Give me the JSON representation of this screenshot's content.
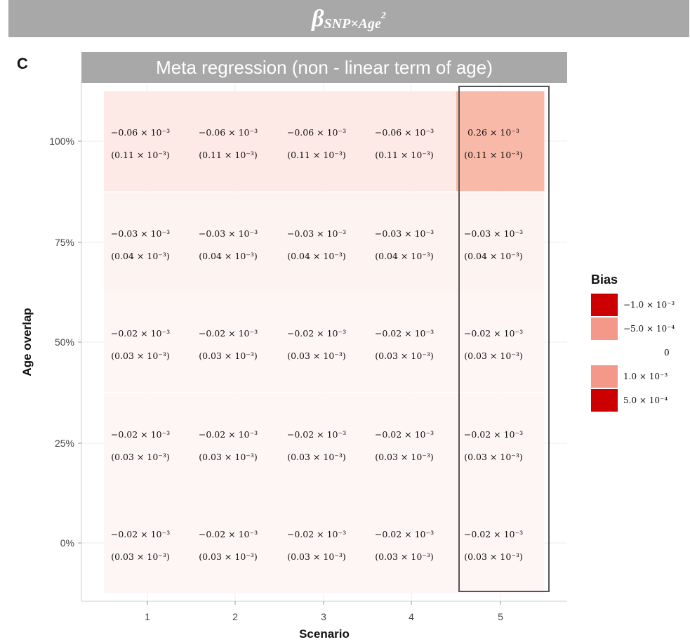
{
  "banner": {
    "beta": "β",
    "subscript": "SNP×Age",
    "superscript": "2"
  },
  "panel_letter": "C",
  "panel_title": "Meta regression (non - linear term of age)",
  "legend": {
    "title": "Bias",
    "items": [
      {
        "label": "−1.0 × 10⁻³",
        "color": "#cc0000"
      },
      {
        "label": "−5.0 × 10⁻⁴",
        "color": "#f4998a"
      },
      {
        "label": "0",
        "color": "#ffffff"
      },
      {
        "label": "1.0 × 10⁻³",
        "color": "#f4998a"
      },
      {
        "label": "5.0 × 10⁻⁴",
        "color": "#cc0000"
      }
    ]
  },
  "chart_data": {
    "type": "heatmap",
    "title": "Meta regression (non - linear term of age)",
    "xlabel": "Scenario",
    "ylabel": "Age overlap",
    "x_categories": [
      "1",
      "2",
      "3",
      "4",
      "5"
    ],
    "y_categories": [
      "100%",
      "75%",
      "50%",
      "25%",
      "0%"
    ],
    "highlight_column": "5",
    "cells": [
      {
        "row": "100%",
        "values": [
          "−0.06 × 10⁻³",
          "−0.06 × 10⁻³",
          "−0.06 × 10⁻³",
          "−0.06 × 10⁻³",
          "0.26 × 10⁻³"
        ],
        "se": [
          "(0.11 × 10⁻³)",
          "(0.11 × 10⁻³)",
          "(0.11 × 10⁻³)",
          "(0.11 × 10⁻³)",
          "(0.11 × 10⁻³)"
        ],
        "fills": [
          "#fde9e6",
          "#fde9e6",
          "#fde9e6",
          "#fde9e6",
          "#f9b9a8"
        ]
      },
      {
        "row": "75%",
        "values": [
          "−0.03 × 10⁻³",
          "−0.03 × 10⁻³",
          "−0.03 × 10⁻³",
          "−0.03 × 10⁻³",
          "−0.03 × 10⁻³"
        ],
        "se": [
          "(0.04 × 10⁻³)",
          "(0.04 × 10⁻³)",
          "(0.04 × 10⁻³)",
          "(0.04 × 10⁻³)",
          "(0.04 × 10⁻³)"
        ],
        "fills": [
          "#fdf3f1",
          "#fdf3f1",
          "#fdf3f1",
          "#fdf3f1",
          "#fdf3f1"
        ]
      },
      {
        "row": "50%",
        "values": [
          "−0.02 × 10⁻³",
          "−0.02 × 10⁻³",
          "−0.02 × 10⁻³",
          "−0.02 × 10⁻³",
          "−0.02 × 10⁻³"
        ],
        "se": [
          "(0.03 × 10⁻³)",
          "(0.03 × 10⁻³)",
          "(0.03 × 10⁻³)",
          "(0.03 × 10⁻³)",
          "(0.03 × 10⁻³)"
        ],
        "fills": [
          "#fdf6f5",
          "#fdf6f5",
          "#fdf6f5",
          "#fdf6f5",
          "#fdf6f5"
        ]
      },
      {
        "row": "25%",
        "values": [
          "−0.02 × 10⁻³",
          "−0.02 × 10⁻³",
          "−0.02 × 10⁻³",
          "−0.02 × 10⁻³",
          "−0.02 × 10⁻³"
        ],
        "se": [
          "(0.03 × 10⁻³)",
          "(0.03 × 10⁻³)",
          "(0.03 × 10⁻³)",
          "(0.03 × 10⁻³)",
          "(0.03 × 10⁻³)"
        ],
        "fills": [
          "#fdf6f5",
          "#fdf6f5",
          "#fdf6f5",
          "#fdf6f5",
          "#fdf6f5"
        ]
      },
      {
        "row": "0%",
        "values": [
          "−0.02 × 10⁻³",
          "−0.02 × 10⁻³",
          "−0.02 × 10⁻³",
          "−0.02 × 10⁻³",
          "−0.02 × 10⁻³"
        ],
        "se": [
          "(0.03 × 10⁻³)",
          "(0.03 × 10⁻³)",
          "(0.03 × 10⁻³)",
          "(0.03 × 10⁻³)",
          "(0.03 × 10⁻³)"
        ],
        "fills": [
          "#fdf6f5",
          "#fdf6f5",
          "#fdf6f5",
          "#fdf6f5",
          "#fdf6f5"
        ]
      }
    ]
  }
}
